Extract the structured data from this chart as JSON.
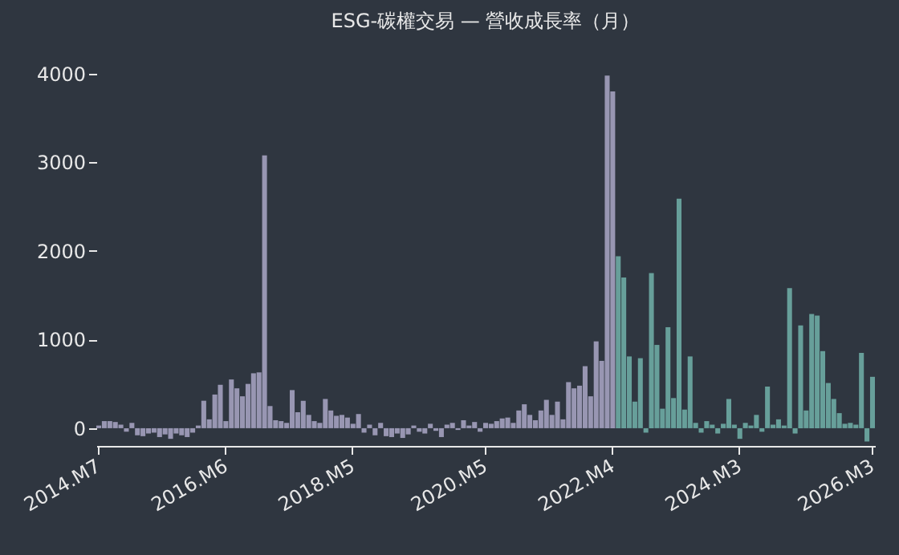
{
  "chart_data": {
    "type": "bar",
    "title": "ESG-碳權交易 — 營收成長率（月）",
    "categories": [
      "2014.M7",
      null,
      null,
      null,
      null,
      null,
      null,
      null,
      null,
      null,
      null,
      null,
      null,
      null,
      null,
      null,
      null,
      null,
      null,
      null,
      null,
      null,
      null,
      "2016.M6",
      null,
      null,
      null,
      null,
      null,
      null,
      null,
      null,
      null,
      null,
      null,
      null,
      null,
      null,
      null,
      null,
      null,
      null,
      null,
      null,
      null,
      null,
      "2018.M5",
      null,
      null,
      null,
      null,
      null,
      null,
      null,
      null,
      null,
      null,
      null,
      null,
      null,
      null,
      null,
      null,
      null,
      null,
      null,
      null,
      null,
      null,
      null,
      "2020.M5",
      null,
      null,
      null,
      null,
      null,
      null,
      null,
      null,
      null,
      null,
      null,
      null,
      null,
      null,
      null,
      null,
      null,
      null,
      null,
      null,
      null,
      null,
      "2022.M4",
      null,
      null,
      null,
      null,
      null,
      null,
      null,
      null,
      null,
      null,
      null,
      null,
      null,
      null,
      null,
      null,
      null,
      null,
      null,
      null,
      null,
      null,
      "2024.M3",
      null,
      null,
      null,
      null,
      null,
      null,
      null,
      null,
      null,
      null,
      null,
      null,
      null,
      null,
      null,
      null,
      null,
      null,
      null,
      null,
      null,
      null,
      null,
      "2026.M3"
    ],
    "values": [
      30,
      80,
      80,
      70,
      40,
      -40,
      60,
      -80,
      -90,
      -60,
      -50,
      -100,
      -70,
      -120,
      -60,
      -80,
      -100,
      -50,
      30,
      310,
      100,
      380,
      490,
      80,
      550,
      450,
      360,
      500,
      620,
      630,
      3080,
      250,
      90,
      80,
      60,
      430,
      180,
      310,
      150,
      80,
      60,
      330,
      200,
      140,
      150,
      120,
      50,
      160,
      -50,
      40,
      -80,
      60,
      -90,
      -100,
      -60,
      -110,
      -70,
      30,
      -40,
      -60,
      50,
      -30,
      -100,
      40,
      60,
      -20,
      90,
      30,
      70,
      -40,
      60,
      50,
      80,
      110,
      120,
      60,
      200,
      270,
      150,
      90,
      200,
      320,
      150,
      300,
      100,
      520,
      450,
      480,
      700,
      360,
      980,
      760,
      3980,
      3800,
      1940,
      1700,
      810,
      300,
      790,
      -50,
      1750,
      940,
      220,
      1140,
      340,
      2590,
      210,
      810,
      60,
      -50,
      80,
      40,
      -60,
      50,
      330,
      40,
      -120,
      60,
      30,
      150,
      -40,
      470,
      40,
      100,
      30,
      1580,
      -60,
      1160,
      200,
      1290,
      1270,
      870,
      510,
      330,
      170,
      50,
      60,
      40,
      850,
      -150,
      580
    ],
    "colors": [
      "#9e9cb8",
      "#9e9cb8",
      "#9e9cb8",
      "#9e9cb8",
      "#9e9cb8",
      "#9e9cb8",
      "#9e9cb8",
      "#9e9cb8",
      "#9e9cb8",
      "#9e9cb8",
      "#9e9cb8",
      "#9e9cb8",
      "#9e9cb8",
      "#9e9cb8",
      "#9e9cb8",
      "#9e9cb8",
      "#9e9cb8",
      "#9e9cb8",
      "#9e9cb8",
      "#9e9cb8",
      "#9e9cb8",
      "#9e9cb8",
      "#9e9cb8",
      "#9e9cb8",
      "#9e9cb8",
      "#9e9cb8",
      "#9e9cb8",
      "#9e9cb8",
      "#9e9cb8",
      "#9e9cb8",
      "#9e9cb8",
      "#9e9cb8",
      "#9e9cb8",
      "#9e9cb8",
      "#9e9cb8",
      "#9e9cb8",
      "#9e9cb8",
      "#9e9cb8",
      "#9e9cb8",
      "#9e9cb8",
      "#9e9cb8",
      "#9e9cb8",
      "#9e9cb8",
      "#9e9cb8",
      "#9e9cb8",
      "#9e9cb8",
      "#9e9cb8",
      "#9e9cb8",
      "#9e9cb8",
      "#9e9cb8",
      "#9e9cb8",
      "#9e9cb8",
      "#9e9cb8",
      "#9e9cb8",
      "#9e9cb8",
      "#9e9cb8",
      "#9e9cb8",
      "#9e9cb8",
      "#9e9cb8",
      "#9e9cb8",
      "#9e9cb8",
      "#9e9cb8",
      "#9e9cb8",
      "#9e9cb8",
      "#9e9cb8",
      "#9e9cb8",
      "#9e9cb8",
      "#9e9cb8",
      "#9e9cb8",
      "#9e9cb8",
      "#9e9cb8",
      "#9e9cb8",
      "#9e9cb8",
      "#9e9cb8",
      "#9e9cb8",
      "#9e9cb8",
      "#9e9cb8",
      "#9e9cb8",
      "#9e9cb8",
      "#9e9cb8",
      "#9e9cb8",
      "#9e9cb8",
      "#9e9cb8",
      "#9e9cb8",
      "#9e9cb8",
      "#9e9cb8",
      "#9e9cb8",
      "#9e9cb8",
      "#9e9cb8",
      "#9e9cb8",
      "#9e9cb8",
      "#9e9cb8",
      "#9e9cb8",
      "#9e9cb8",
      "#6aa59f",
      "#6aa59f",
      "#6aa59f",
      "#6aa59f",
      "#6aa59f",
      "#6aa59f",
      "#6aa59f",
      "#6aa59f",
      "#6aa59f",
      "#6aa59f",
      "#6aa59f",
      "#6aa59f",
      "#6aa59f",
      "#6aa59f",
      "#6aa59f",
      "#6aa59f",
      "#6aa59f",
      "#6aa59f",
      "#6aa59f",
      "#6aa59f",
      "#6aa59f",
      "#6aa59f",
      "#6aa59f",
      "#6aa59f",
      "#6aa59f",
      "#6aa59f",
      "#6aa59f",
      "#6aa59f",
      "#6aa59f",
      "#6aa59f",
      "#6aa59f",
      "#6aa59f",
      "#6aa59f",
      "#6aa59f",
      "#6aa59f",
      "#6aa59f",
      "#6aa59f",
      "#6aa59f",
      "#6aa59f",
      "#6aa59f",
      "#6aa59f",
      "#6aa59f",
      "#6aa59f",
      "#6aa59f",
      "#6aa59f",
      "#6aa59f",
      "#6aa59f"
    ],
    "ylim": [
      -200,
      4000
    ],
    "yticks": [
      0,
      1000,
      2000,
      3000,
      4000
    ]
  }
}
